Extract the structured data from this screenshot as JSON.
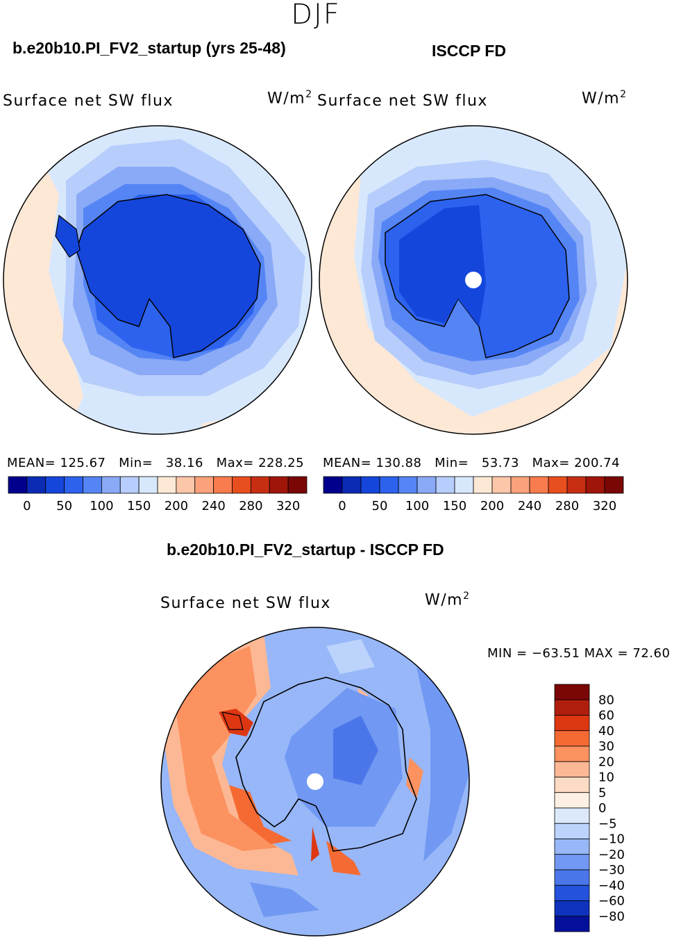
{
  "title": "DJF",
  "panels": [
    {
      "case_title": "b.e20b10.PI_FV2_startup (yrs 25-48)",
      "variable": "Surface net SW flux",
      "units": "W/m",
      "units_exp": "2",
      "stats": {
        "mean_label": "MEAN=",
        "mean": "125.67",
        "min_label": "Min=",
        "min": "38.16",
        "max_label": "Max=",
        "max": "228.25"
      }
    },
    {
      "case_title": "ISCCP FD",
      "variable": "Surface net SW flux",
      "units": "W/m",
      "units_exp": "2",
      "stats": {
        "mean_label": "MEAN=",
        "mean": "130.88",
        "min_label": "Min=",
        "min": "53.73",
        "max_label": "Max=",
        "max": "200.74"
      }
    }
  ],
  "diff_panel": {
    "title": "b.e20b10.PI_FV2_startup - ISCCP FD",
    "variable": "Surface net SW flux",
    "units": "W/m",
    "units_exp": "2",
    "minmax_text": "MIN = −63.51  MAX =  72.60"
  },
  "chart_data": [
    {
      "type": "heatmap",
      "projection": "south-polar-stereographic",
      "title": "b.e20b10.PI_FV2_startup (yrs 25-48)",
      "variable": "Surface net SW flux",
      "units": "W/m2",
      "mean": 125.67,
      "min": 38.16,
      "max": 228.25,
      "colorbar": {
        "levels": [
          0,
          25,
          50,
          75,
          100,
          125,
          150,
          175,
          200,
          220,
          240,
          260,
          280,
          300,
          320
        ],
        "tick_labels": [
          "0",
          "50",
          "100",
          "150",
          "200",
          "240",
          "280",
          "320"
        ],
        "colors": [
          "#00008c",
          "#0b2bb5",
          "#1546dc",
          "#2c62ee",
          "#5585f5",
          "#8aaaf7",
          "#b7cdfb",
          "#d8e8fc",
          "#fde8d6",
          "#fcc6a9",
          "#fba27c",
          "#f97c4e",
          "#e84f1e",
          "#c72e12",
          "#a01509",
          "#7a0606"
        ]
      }
    },
    {
      "type": "heatmap",
      "projection": "south-polar-stereographic",
      "title": "ISCCP FD",
      "variable": "Surface net SW flux",
      "units": "W/m2",
      "mean": 130.88,
      "min": 53.73,
      "max": 200.74,
      "colorbar": {
        "levels": [
          0,
          25,
          50,
          75,
          100,
          125,
          150,
          175,
          200,
          220,
          240,
          260,
          280,
          300,
          320
        ],
        "tick_labels": [
          "0",
          "50",
          "100",
          "150",
          "200",
          "240",
          "280",
          "320"
        ],
        "colors": [
          "#00008c",
          "#0b2bb5",
          "#1546dc",
          "#2c62ee",
          "#5585f5",
          "#8aaaf7",
          "#b7cdfb",
          "#d8e8fc",
          "#fde8d6",
          "#fcc6a9",
          "#fba27c",
          "#f97c4e",
          "#e84f1e",
          "#c72e12",
          "#a01509",
          "#7a0606"
        ]
      }
    },
    {
      "type": "heatmap",
      "projection": "south-polar-stereographic",
      "title": "b.e20b10.PI_FV2_startup - ISCCP FD",
      "variable": "Surface net SW flux",
      "units": "W/m2",
      "min": -63.51,
      "max": 72.6,
      "colorbar": {
        "tick_labels": [
          "80",
          "60",
          "40",
          "30",
          "20",
          "10",
          "5",
          "0",
          "−5",
          "−10",
          "−20",
          "−30",
          "−40",
          "−60",
          "−80"
        ],
        "colors": [
          "#7a0606",
          "#b01e0e",
          "#dd3712",
          "#f56a33",
          "#fb9260",
          "#fcb894",
          "#fddbc4",
          "#fdf0e3",
          "#dce9fb",
          "#bcd3fb",
          "#97b7f8",
          "#7198f2",
          "#4a76ea",
          "#2452dd",
          "#0e32bc",
          "#04109a"
        ]
      }
    }
  ]
}
